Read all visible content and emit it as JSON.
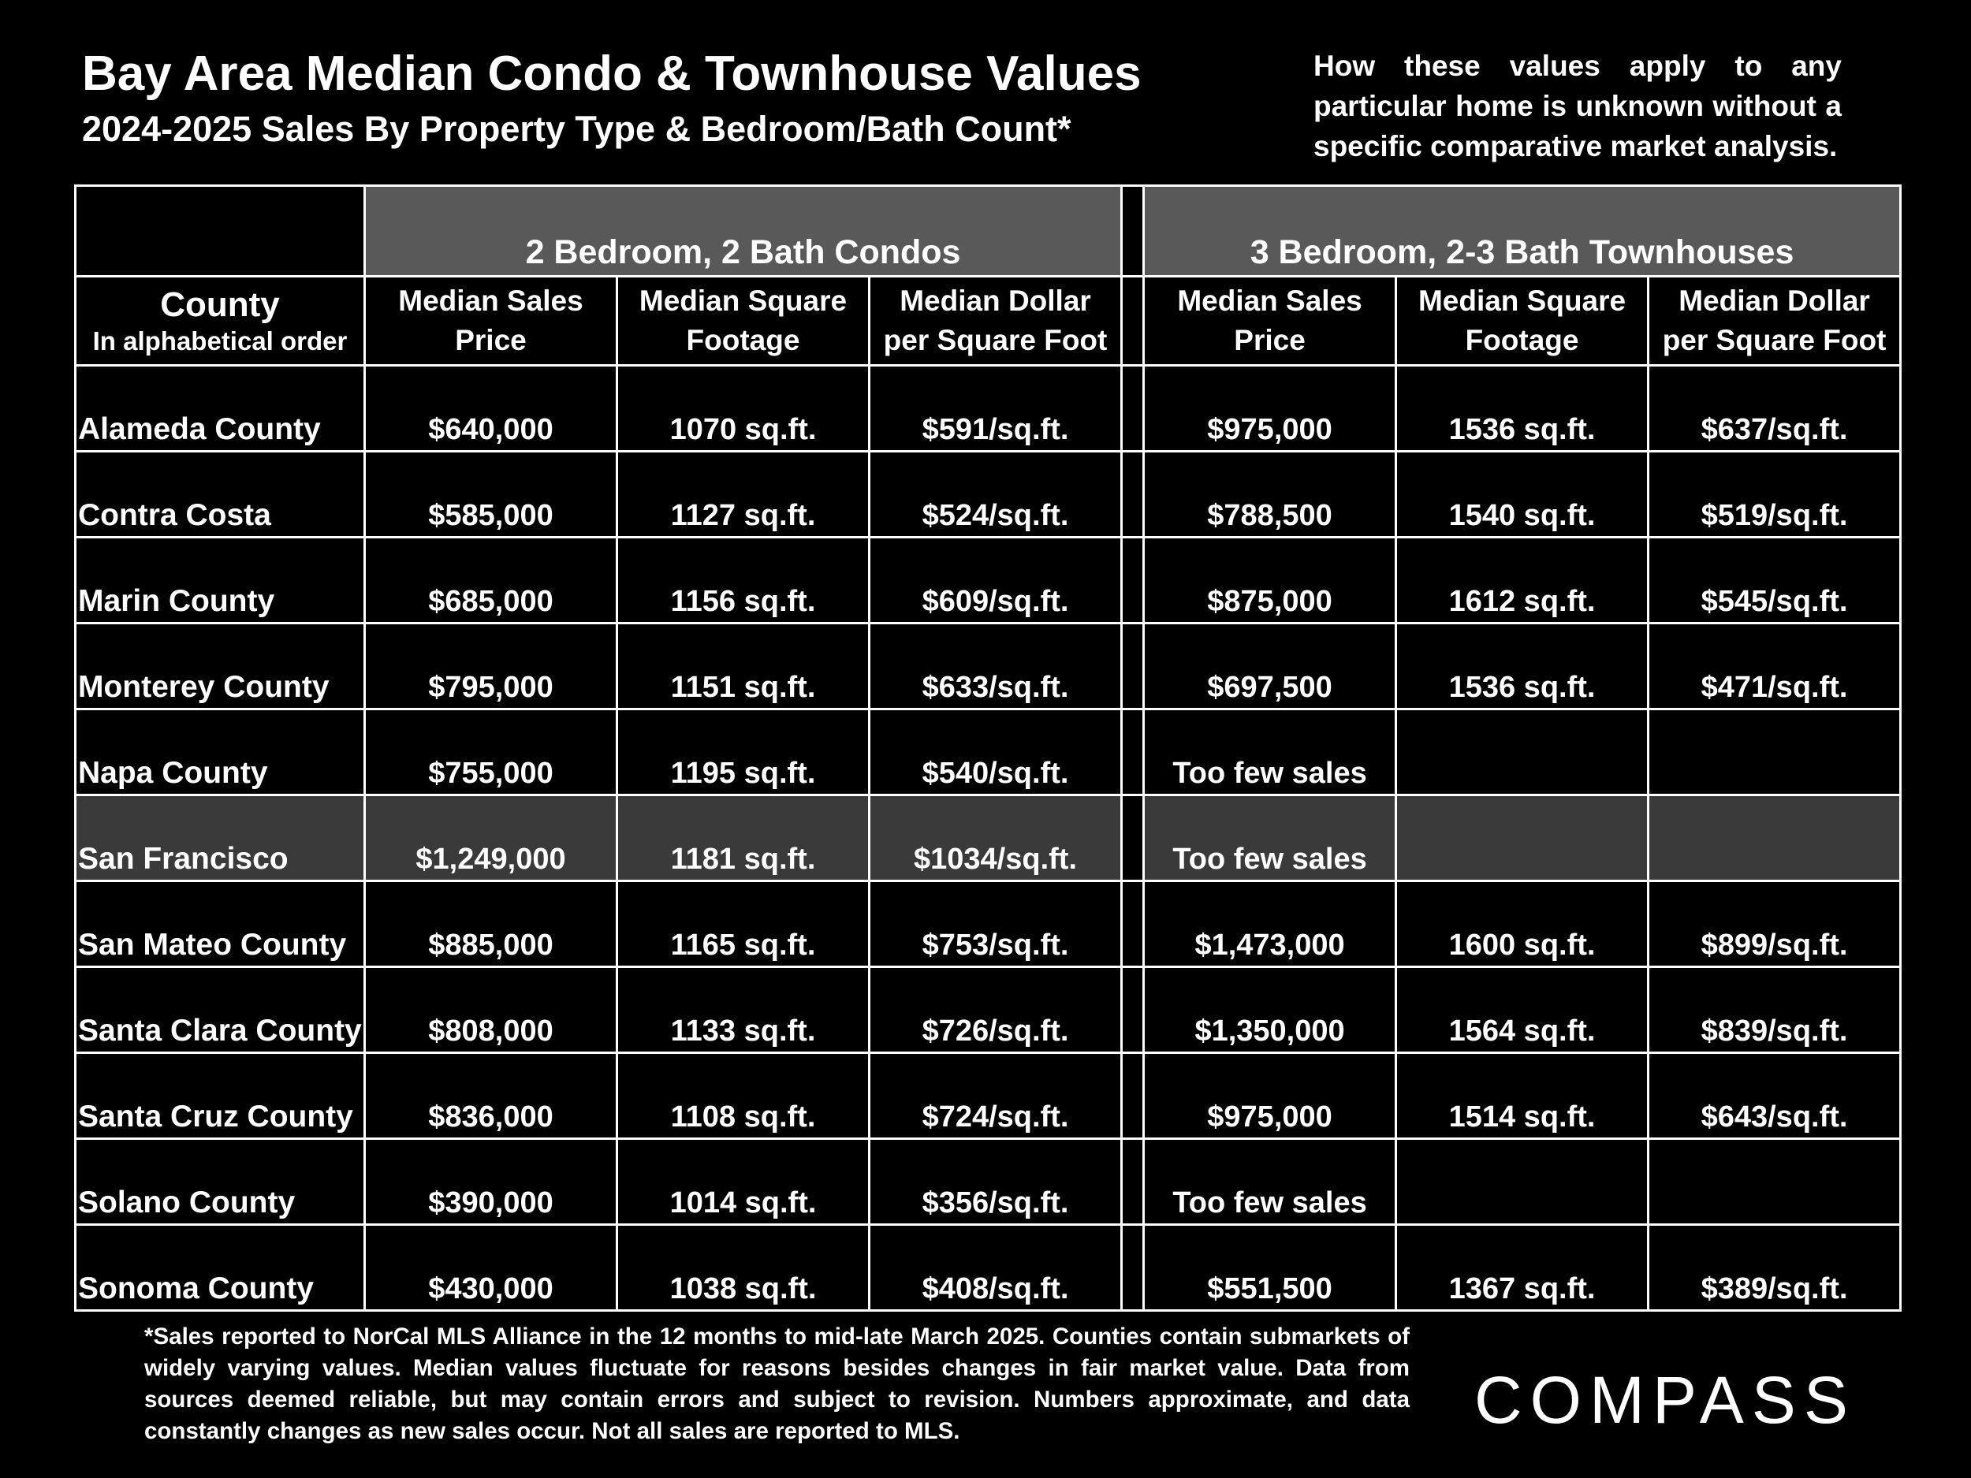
{
  "header": {
    "title": "Bay Area Median Condo & Townhouse Values",
    "subtitle": "2024-2025 Sales By Property Type & Bedroom/Bath Count*",
    "disclaimer": "How these values apply to any particular home is unknown without a specific comparative market analysis."
  },
  "table": {
    "group_condos": "2 Bedroom, 2 Bath Condos",
    "group_townhouses": "3 Bedroom, 2-3 Bath Townhouses",
    "county_header": "County",
    "county_subheader": "In alphabetical order",
    "col_price_line1": "Median Sales",
    "col_price_line2": "Price",
    "col_sqft_line1": "Median Square",
    "col_sqft_line2": "Footage",
    "col_ppsf_line1": "Median Dollar",
    "col_ppsf_line2": "per Square Foot",
    "rows": [
      {
        "county": "Alameda County",
        "c_price": "$640,000",
        "c_sqft": "1070 sq.ft.",
        "c_ppsf": "$591/sq.ft.",
        "t_price": "$975,000",
        "t_sqft": "1536 sq.ft.",
        "t_ppsf": "$637/sq.ft."
      },
      {
        "county": "Contra Costa",
        "c_price": "$585,000",
        "c_sqft": "1127 sq.ft.",
        "c_ppsf": "$524/sq.ft.",
        "t_price": "$788,500",
        "t_sqft": "1540 sq.ft.",
        "t_ppsf": "$519/sq.ft."
      },
      {
        "county": "Marin County",
        "c_price": "$685,000",
        "c_sqft": "1156 sq.ft.",
        "c_ppsf": "$609/sq.ft.",
        "t_price": "$875,000",
        "t_sqft": "1612 sq.ft.",
        "t_ppsf": "$545/sq.ft."
      },
      {
        "county": "Monterey County",
        "c_price": "$795,000",
        "c_sqft": "1151 sq.ft.",
        "c_ppsf": "$633/sq.ft.",
        "t_price": "$697,500",
        "t_sqft": "1536 sq.ft.",
        "t_ppsf": "$471/sq.ft."
      },
      {
        "county": "Napa County",
        "c_price": "$755,000",
        "c_sqft": "1195 sq.ft.",
        "c_ppsf": "$540/sq.ft.",
        "t_price": "Too few sales",
        "t_sqft": "",
        "t_ppsf": ""
      },
      {
        "county": "San Francisco",
        "c_price": "$1,249,000",
        "c_sqft": "1181 sq.ft.",
        "c_ppsf": "$1034/sq.ft.",
        "t_price": "Too few sales",
        "t_sqft": "",
        "t_ppsf": ""
      },
      {
        "county": "San Mateo County",
        "c_price": "$885,000",
        "c_sqft": "1165 sq.ft.",
        "c_ppsf": "$753/sq.ft.",
        "t_price": "$1,473,000",
        "t_sqft": "1600 sq.ft.",
        "t_ppsf": "$899/sq.ft."
      },
      {
        "county": "Santa Clara County",
        "c_price": "$808,000",
        "c_sqft": "1133 sq.ft.",
        "c_ppsf": "$726/sq.ft.",
        "t_price": "$1,350,000",
        "t_sqft": "1564 sq.ft.",
        "t_ppsf": "$839/sq.ft."
      },
      {
        "county": "Santa Cruz County",
        "c_price": "$836,000",
        "c_sqft": "1108 sq.ft.",
        "c_ppsf": "$724/sq.ft.",
        "t_price": "$975,000",
        "t_sqft": "1514 sq.ft.",
        "t_ppsf": "$643/sq.ft."
      },
      {
        "county": "Solano County",
        "c_price": "$390,000",
        "c_sqft": "1014 sq.ft.",
        "c_ppsf": "$356/sq.ft.",
        "t_price": "Too few sales",
        "t_sqft": "",
        "t_ppsf": ""
      },
      {
        "county": "Sonoma County",
        "c_price": "$430,000",
        "c_sqft": "1038 sq.ft.",
        "c_ppsf": "$408/sq.ft.",
        "t_price": "$551,500",
        "t_sqft": "1367 sq.ft.",
        "t_ppsf": "$389/sq.ft."
      }
    ]
  },
  "footnote": "*Sales reported to NorCal MLS Alliance in the 12 months to mid-late March 2025. Counties contain submarkets of widely varying values. Median values fluctuate for reasons besides changes in fair market value. Data from sources deemed reliable, but may contain errors and subject to revision.  Numbers approximate, and data constantly changes as new sales occur. Not all sales are reported to MLS.",
  "logo": "COMPASS"
}
